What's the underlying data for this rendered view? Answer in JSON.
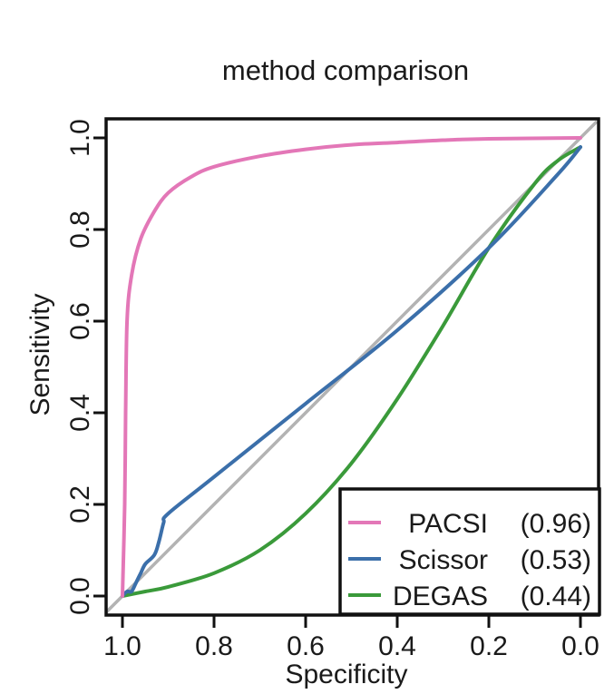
{
  "chart_data": {
    "type": "line",
    "title": "method comparison",
    "xlabel": "Specificity",
    "ylabel": "Sensitivity",
    "xlim": [
      1.0,
      0.0
    ],
    "ylim": [
      0.0,
      1.0
    ],
    "x_reversed": true,
    "x_ticks": [
      "1.0",
      "0.8",
      "0.6",
      "0.4",
      "0.2",
      "0.0"
    ],
    "y_ticks": [
      "0.0",
      "0.2",
      "0.4",
      "0.6",
      "0.8",
      "1.0"
    ],
    "grid": false,
    "legend_position": "bottom-right",
    "reference_line": {
      "from": [
        1.0,
        0.0
      ],
      "to": [
        0.0,
        1.0
      ],
      "color": "#b3b3b3"
    },
    "series": [
      {
        "name": "PACSI",
        "auc_label": "(0.96)",
        "color": "#e377b7",
        "points": [
          [
            1.0,
            0.0
          ],
          [
            0.995,
            0.2
          ],
          [
            0.993,
            0.4
          ],
          [
            0.99,
            0.6
          ],
          [
            0.98,
            0.7
          ],
          [
            0.96,
            0.78
          ],
          [
            0.93,
            0.84
          ],
          [
            0.9,
            0.88
          ],
          [
            0.85,
            0.915
          ],
          [
            0.8,
            0.937
          ],
          [
            0.7,
            0.96
          ],
          [
            0.6,
            0.975
          ],
          [
            0.5,
            0.985
          ],
          [
            0.4,
            0.99
          ],
          [
            0.3,
            0.995
          ],
          [
            0.2,
            0.998
          ],
          [
            0.0,
            1.0
          ]
        ]
      },
      {
        "name": "Scissor",
        "auc_label": "(0.53)",
        "color": "#3b6faa",
        "points": [
          [
            1.0,
            0.0
          ],
          [
            0.99,
            0.01
          ],
          [
            0.98,
            0.01
          ],
          [
            0.97,
            0.03
          ],
          [
            0.96,
            0.05
          ],
          [
            0.95,
            0.07
          ],
          [
            0.93,
            0.09
          ],
          [
            0.92,
            0.12
          ],
          [
            0.91,
            0.16
          ],
          [
            0.9,
            0.18
          ],
          [
            0.8,
            0.26
          ],
          [
            0.6,
            0.42
          ],
          [
            0.4,
            0.58
          ],
          [
            0.2,
            0.76
          ],
          [
            0.05,
            0.92
          ],
          [
            0.0,
            0.98
          ]
        ]
      },
      {
        "name": "DEGAS",
        "auc_label": "(0.44)",
        "color": "#3a9a3a",
        "points": [
          [
            1.0,
            0.0
          ],
          [
            0.95,
            0.01
          ],
          [
            0.9,
            0.02
          ],
          [
            0.8,
            0.05
          ],
          [
            0.7,
            0.1
          ],
          [
            0.6,
            0.18
          ],
          [
            0.5,
            0.29
          ],
          [
            0.4,
            0.43
          ],
          [
            0.3,
            0.59
          ],
          [
            0.2,
            0.76
          ],
          [
            0.1,
            0.9
          ],
          [
            0.05,
            0.95
          ],
          [
            0.0,
            0.98
          ]
        ]
      }
    ]
  }
}
